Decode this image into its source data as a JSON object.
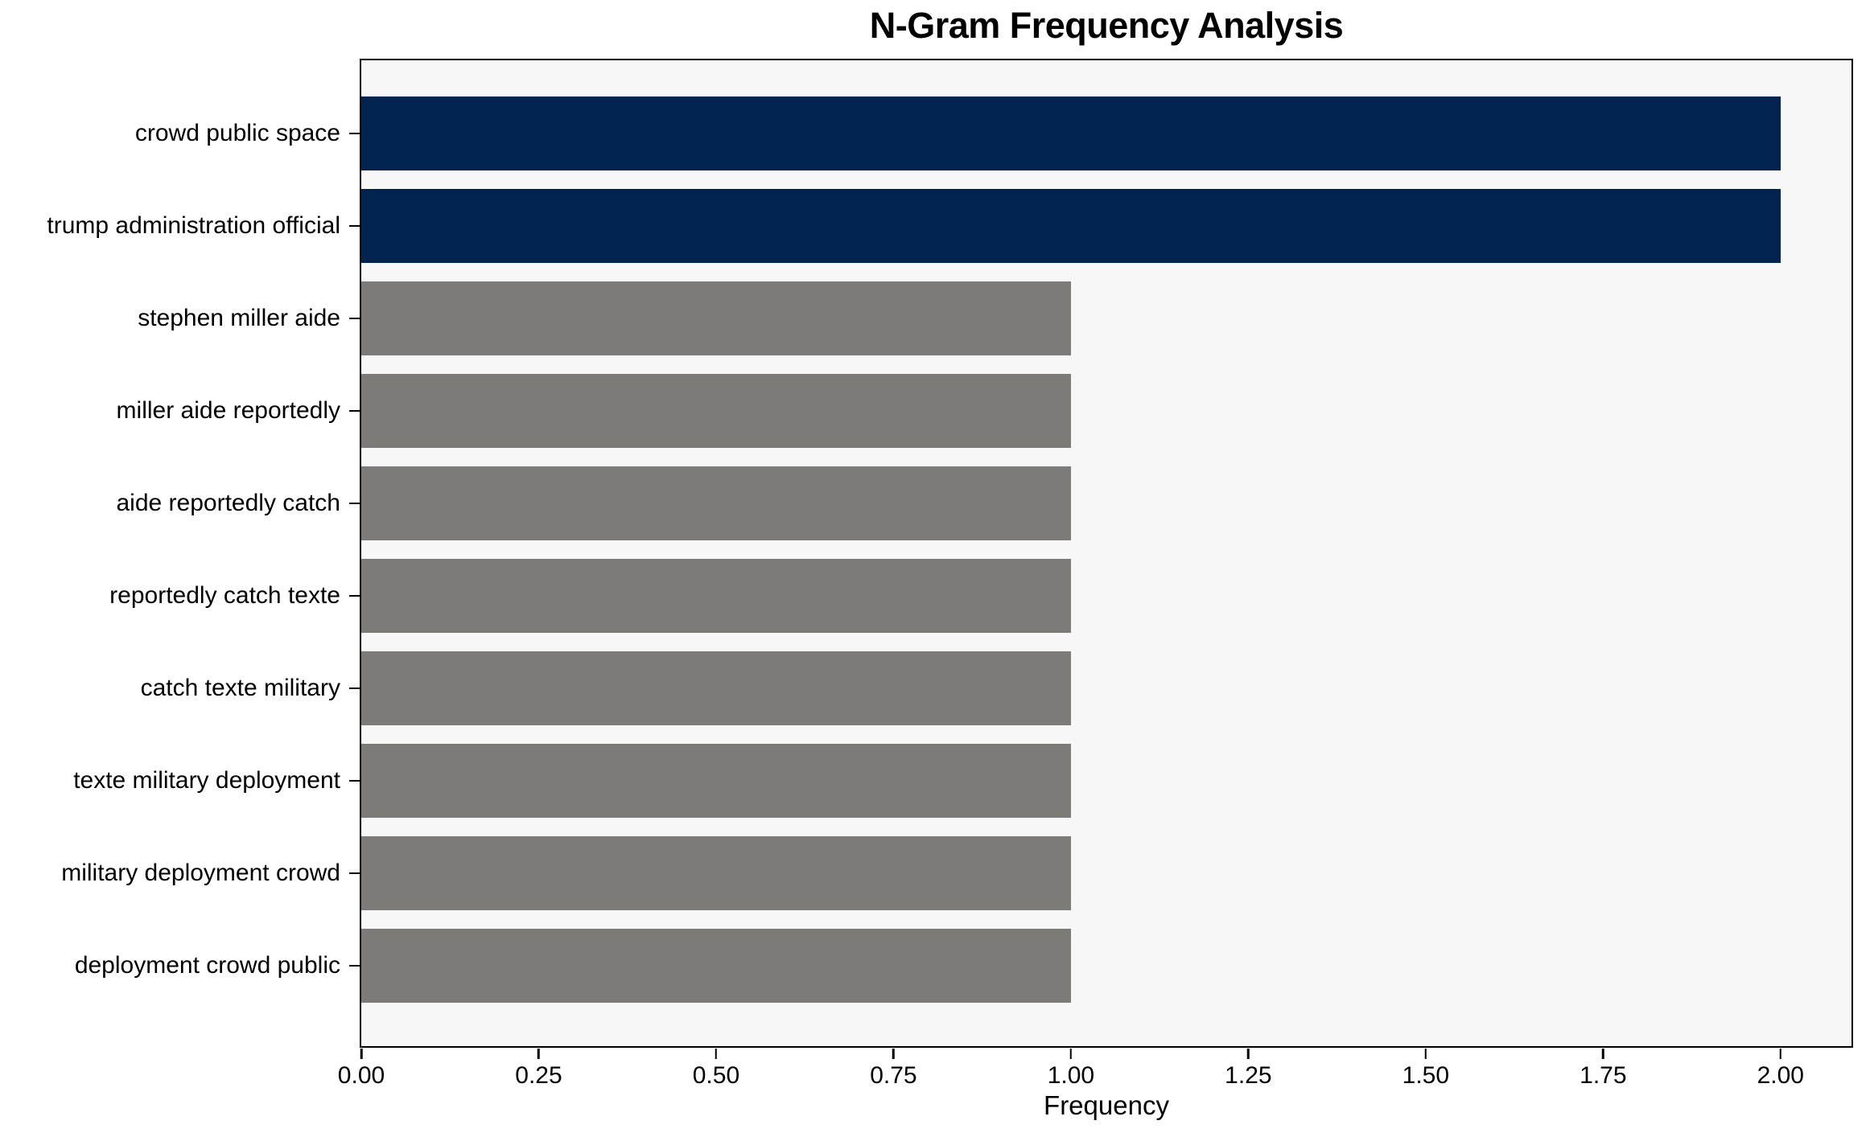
{
  "chart_data": {
    "type": "bar",
    "orientation": "horizontal",
    "title": "N-Gram Frequency Analysis",
    "xlabel": "Frequency",
    "categories": [
      "crowd public space",
      "trump administration official",
      "stephen miller aide",
      "miller aide reportedly",
      "aide reportedly catch",
      "reportedly catch texte",
      "catch texte military",
      "texte military deployment",
      "military deployment crowd",
      "deployment crowd public"
    ],
    "values": [
      2,
      2,
      1,
      1,
      1,
      1,
      1,
      1,
      1,
      1
    ],
    "colors": [
      "#02234d",
      "#02234d",
      "#7c7b78",
      "#7c7b78",
      "#7c7b78",
      "#7c7b78",
      "#7c7b78",
      "#7c7b78",
      "#7c7b78",
      "#7c7b78"
    ],
    "xlim": [
      0,
      2.1
    ],
    "xtick_values": [
      0,
      0.25,
      0.5,
      0.75,
      1,
      1.25,
      1.5,
      1.75,
      2
    ],
    "xtick_labels": [
      "0.00",
      "0.25",
      "0.50",
      "0.75",
      "1.00",
      "1.25",
      "1.50",
      "1.75",
      "2.00"
    ],
    "grid": false,
    "legend_position": "none",
    "plot_background": "#f7f7f7",
    "figure_background": "#ffffff",
    "axis_color": "#000000",
    "text_color": "#000000"
  }
}
